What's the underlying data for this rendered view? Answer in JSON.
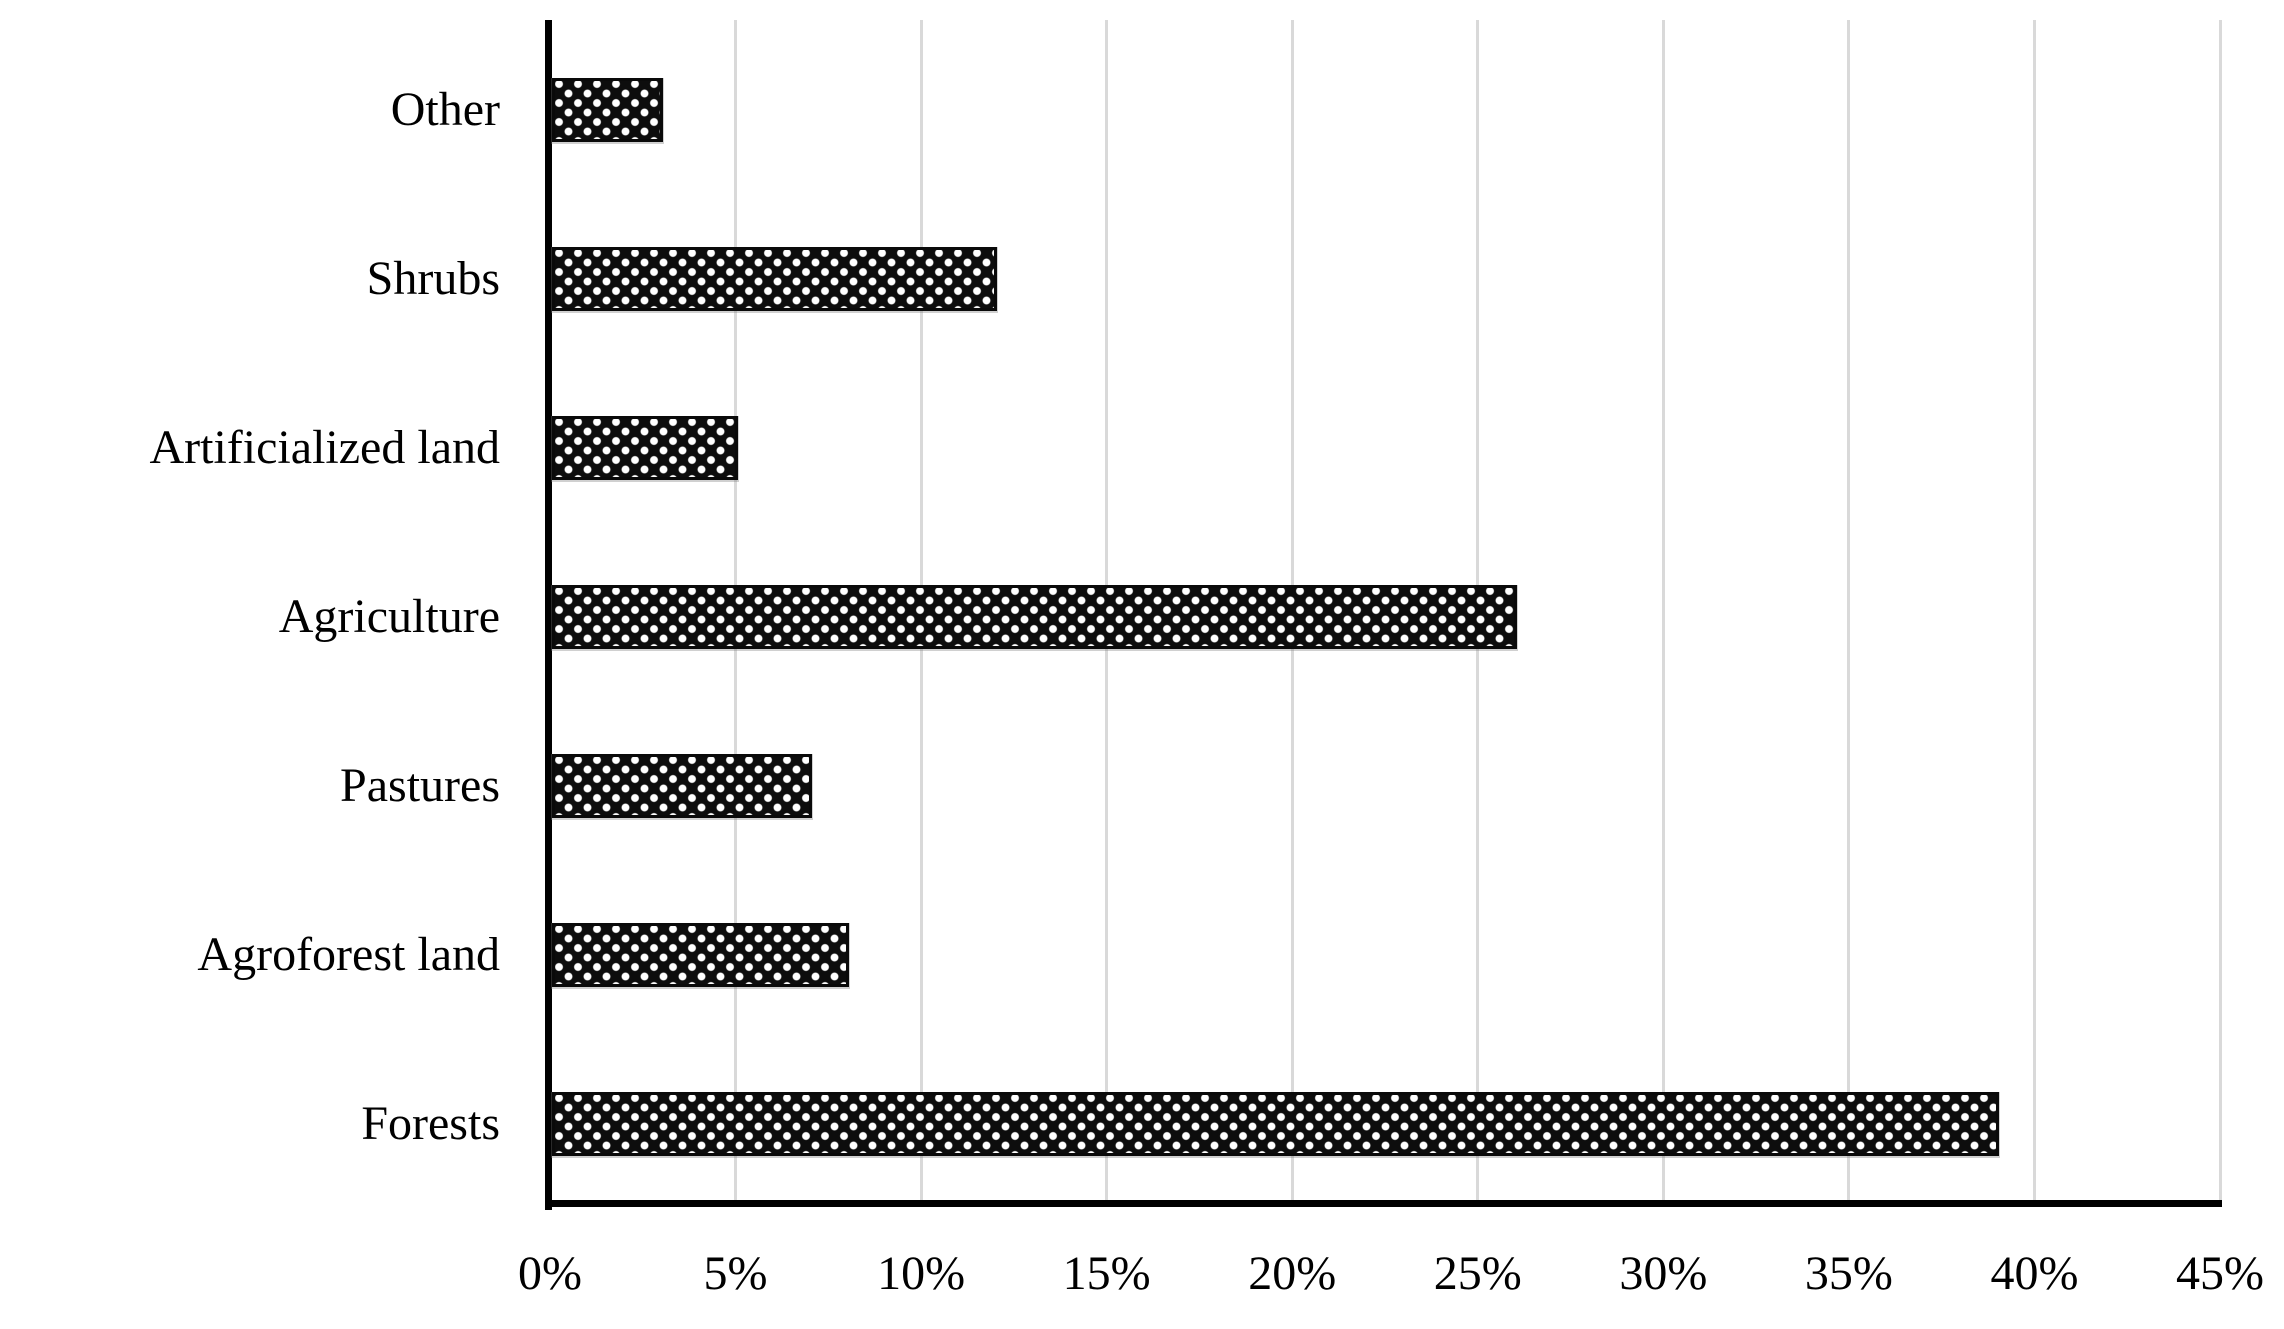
{
  "chart_data": {
    "type": "bar",
    "orientation": "horizontal",
    "title": "",
    "xlabel": "",
    "ylabel": "",
    "categories": [
      "Other",
      "Shrubs",
      "Artificialized land",
      "Agriculture",
      "Pastures",
      "Agroforest land",
      "Forests"
    ],
    "values": [
      3,
      12,
      5,
      26,
      7,
      8,
      39
    ],
    "value_unit": "%",
    "xlim": [
      0,
      45
    ],
    "xtick_step": 5,
    "xtick_labels": [
      "0%",
      "5%",
      "10%",
      "15%",
      "20%",
      "25%",
      "30%",
      "35%",
      "40%",
      "45%"
    ],
    "grid": "vertical-gridlines-on",
    "legend": "none",
    "colors": {
      "background": "#ffffff",
      "bar_fill": "#0d0d0d",
      "bar_pattern_dots": "#ffffff",
      "bar_border": "#0a0a0a",
      "axis_line": "#000000",
      "gridline": "#d9d9d9",
      "text": "#000000"
    },
    "bar_pattern": "dotted-diamond"
  }
}
